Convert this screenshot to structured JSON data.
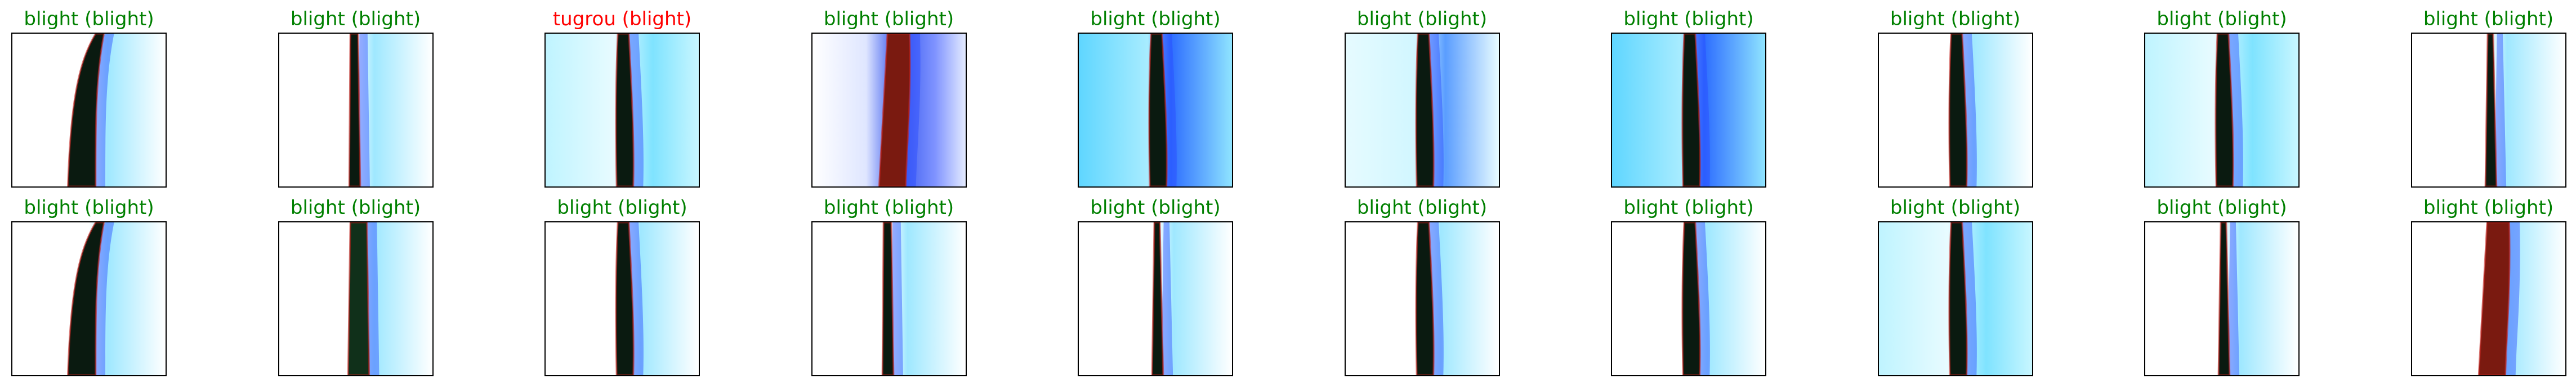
{
  "colors": {
    "correct": "#008000",
    "incorrect": "#ff0000",
    "frame": "#000000"
  },
  "rows": [
    {
      "items": [
        {
          "caption": "blight (blight)",
          "status": "correct",
          "tint": "white",
          "stem": "curved-left"
        },
        {
          "caption": "blight (blight)",
          "status": "correct",
          "tint": "white",
          "stem": "straight-thin"
        },
        {
          "caption": "tugrou (blight)",
          "status": "incorrect",
          "tint": "cyan",
          "stem": "straight"
        },
        {
          "caption": "blight (blight)",
          "status": "correct",
          "tint": "blue-glow",
          "stem": "wide-red"
        },
        {
          "caption": "blight (blight)",
          "status": "correct",
          "tint": "cyan-deep",
          "stem": "straight"
        },
        {
          "caption": "blight (blight)",
          "status": "correct",
          "tint": "cyan-light",
          "stem": "straight"
        },
        {
          "caption": "blight (blight)",
          "status": "correct",
          "tint": "cyan-deep",
          "stem": "straight"
        },
        {
          "caption": "blight (blight)",
          "status": "correct",
          "tint": "white",
          "stem": "straight"
        },
        {
          "caption": "blight (blight)",
          "status": "correct",
          "tint": "cyan",
          "stem": "straight"
        },
        {
          "caption": "blight (blight)",
          "status": "correct",
          "tint": "white",
          "stem": "thin"
        }
      ]
    },
    {
      "items": [
        {
          "caption": "blight (blight)",
          "status": "correct",
          "tint": "white",
          "stem": "curved-left"
        },
        {
          "caption": "blight (blight)",
          "status": "correct",
          "tint": "white",
          "stem": "wide-green"
        },
        {
          "caption": "blight (blight)",
          "status": "correct",
          "tint": "white",
          "stem": "straight"
        },
        {
          "caption": "blight (blight)",
          "status": "correct",
          "tint": "white",
          "stem": "straight-thin"
        },
        {
          "caption": "blight (blight)",
          "status": "correct",
          "tint": "white",
          "stem": "thin"
        },
        {
          "caption": "blight (blight)",
          "status": "correct",
          "tint": "white",
          "stem": "straight"
        },
        {
          "caption": "blight (blight)",
          "status": "correct",
          "tint": "white",
          "stem": "straight"
        },
        {
          "caption": "blight (blight)",
          "status": "correct",
          "tint": "cyan",
          "stem": "straight"
        },
        {
          "caption": "blight (blight)",
          "status": "correct",
          "tint": "white",
          "stem": "thin"
        },
        {
          "caption": "blight (blight)",
          "status": "correct",
          "tint": "white",
          "stem": "wide-red"
        }
      ]
    }
  ]
}
